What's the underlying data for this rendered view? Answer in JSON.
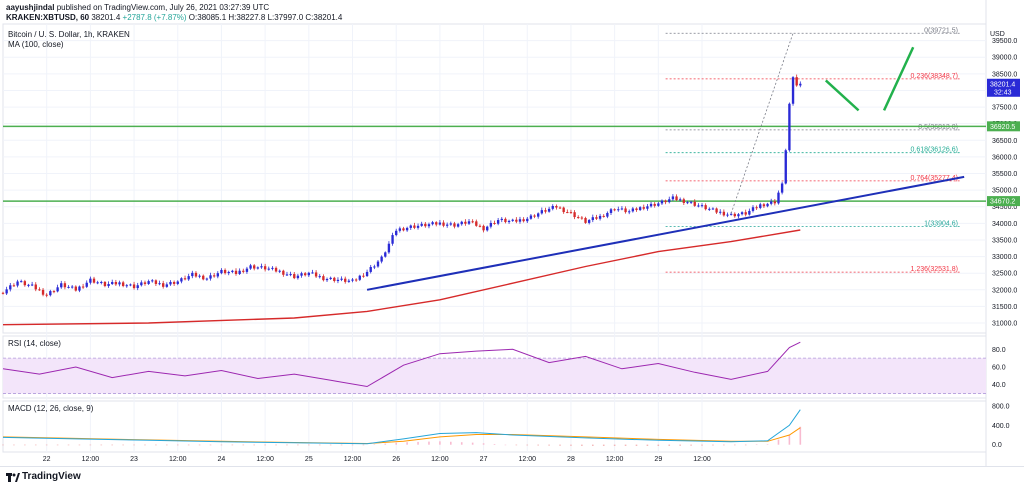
{
  "header": {
    "author": "aayushjindal",
    "published_text": "published on TradingView.com, July 26, 2021 03:27:39 UTC",
    "symbol_line": "KRAKEN:XBTUSD, 60",
    "quote": {
      "last": "38201.4",
      "change": "+2787.8 (+7.87%)",
      "open": "O:38085.1",
      "high": "H:38227.8",
      "low": "L:37997.0",
      "close": "C:38201.4"
    }
  },
  "legend": {
    "pair": "Bitcoin / U. S. Dollar, 1h, KRAKEN",
    "ma": "MA (100, close)",
    "rsi": "RSI (14, close)",
    "macd": "MACD (12, 26, close, 9)"
  },
  "footer": {
    "brand": "TradingView"
  },
  "colors": {
    "up": "#2a2ad6",
    "down": "#d62a2a",
    "ma": "#d62a2a",
    "trendline": "#1e2fb8",
    "support": "#4caf50",
    "arrow": "#22b14c",
    "rsi": "#9c27b0",
    "macd": "#26a6d9",
    "signal": "#ff9800"
  },
  "chart_data": [
    {
      "type": "candlestick",
      "title": "Bitcoin / U. S. Dollar, 1h, KRAKEN",
      "unit": "USD",
      "x_ticks": [
        "22",
        "12:00",
        "23",
        "12:00",
        "24",
        "12:00",
        "25",
        "12:00",
        "26",
        "12:00",
        "27",
        "12:00",
        "28",
        "12:00",
        "29",
        "12:00"
      ],
      "y_ticks": [
        31000,
        31500,
        32000,
        32500,
        33000,
        33500,
        34000,
        34500,
        35000,
        35500,
        36000,
        36500,
        37000,
        37500,
        38000,
        38500,
        39000,
        39500
      ],
      "ylim": [
        30700,
        40000
      ],
      "close_path": [
        [
          0,
          31950
        ],
        [
          4,
          32250
        ],
        [
          8,
          32100
        ],
        [
          12,
          31850
        ],
        [
          16,
          32150
        ],
        [
          20,
          32000
        ],
        [
          24,
          32300
        ],
        [
          28,
          32150
        ],
        [
          32,
          32200
        ],
        [
          36,
          32100
        ],
        [
          40,
          32250
        ],
        [
          44,
          32150
        ],
        [
          48,
          32250
        ],
        [
          52,
          32450
        ],
        [
          56,
          32350
        ],
        [
          60,
          32550
        ],
        [
          64,
          32500
        ],
        [
          68,
          32700
        ],
        [
          72,
          32650
        ],
        [
          76,
          32550
        ],
        [
          80,
          32400
        ],
        [
          84,
          32500
        ],
        [
          88,
          32350
        ],
        [
          92,
          32300
        ],
        [
          96,
          32250
        ],
        [
          100,
          32550
        ],
        [
          104,
          32950
        ],
        [
          108,
          33800
        ],
        [
          112,
          33900
        ],
        [
          116,
          33950
        ],
        [
          120,
          34000
        ],
        [
          124,
          33950
        ],
        [
          128,
          34050
        ],
        [
          132,
          33850
        ],
        [
          136,
          34100
        ],
        [
          140,
          34050
        ],
        [
          144,
          34150
        ],
        [
          148,
          34350
        ],
        [
          152,
          34500
        ],
        [
          156,
          34300
        ],
        [
          160,
          34050
        ],
        [
          164,
          34200
        ],
        [
          168,
          34450
        ],
        [
          172,
          34350
        ],
        [
          176,
          34500
        ],
        [
          180,
          34600
        ],
        [
          184,
          34750
        ],
        [
          188,
          34650
        ],
        [
          192,
          34500
        ],
        [
          196,
          34350
        ],
        [
          200,
          34250
        ],
        [
          204,
          34300
        ],
        [
          208,
          34550
        ],
        [
          212,
          34650
        ],
        [
          214,
          35200
        ],
        [
          215,
          36200
        ],
        [
          216,
          37600
        ],
        [
          217,
          38400
        ],
        [
          218,
          38150
        ],
        [
          219,
          38201.4
        ]
      ],
      "spike_high": 39721.5,
      "series": [
        {
          "name": "MA (100, close)",
          "values": [
            [
              0,
              30950
            ],
            [
              40,
              31000
            ],
            [
              80,
              31150
            ],
            [
              100,
              31350
            ],
            [
              120,
              31700
            ],
            [
              140,
              32200
            ],
            [
              160,
              32700
            ],
            [
              180,
              33150
            ],
            [
              200,
              33450
            ],
            [
              219,
              33800
            ]
          ]
        }
      ],
      "trendline": [
        [
          100,
          32000
        ],
        [
          264,
          35400
        ]
      ],
      "support_levels": [
        36920.5,
        34670.2
      ],
      "fib_levels": [
        {
          "ratio": "0",
          "value": "0(39721.5)",
          "price": 39721.5,
          "color": "#787b86"
        },
        {
          "ratio": "0.236",
          "value": "0.236(38348.7)",
          "price": 38348.7,
          "color": "#f23645"
        },
        {
          "ratio": "0.5",
          "value": "0.5(36813.0)",
          "price": 36813.0,
          "color": "#787b86"
        },
        {
          "ratio": "0.618",
          "value": "0.618(36126.6)",
          "price": 36126.6,
          "color": "#22ab94"
        },
        {
          "ratio": "0.764",
          "value": "0.764(35277.4)",
          "price": 35277.4,
          "color": "#f23645"
        },
        {
          "ratio": "1",
          "value": "1(33904.6)",
          "price": 33904.6,
          "color": "#26a69a"
        },
        {
          "ratio": "1.236",
          "value": "1.236(32531.8)",
          "price": 32531.8,
          "color": "#f23645"
        }
      ],
      "price_labels": [
        {
          "value": "38201.4",
          "sub": "32:43",
          "price": 38201.4,
          "color": "#2a2ad6"
        },
        {
          "value": "36920.5",
          "price": 36920.5,
          "color": "#4caf50"
        },
        {
          "value": "34670.2",
          "price": 34670.2,
          "color": "#4caf50"
        }
      ],
      "projection_arrow": [
        [
          226,
          38300
        ],
        [
          235,
          37400
        ],
        [
          242,
          37400
        ],
        [
          250,
          39300
        ]
      ]
    },
    {
      "type": "line",
      "title": "RSI (14, close)",
      "y_ticks": [
        40.0,
        60.0,
        80.0
      ],
      "ylim": [
        25,
        95
      ],
      "band": [
        30,
        70
      ],
      "series": [
        {
          "name": "RSI (14, close)",
          "values": [
            [
              0,
              58
            ],
            [
              10,
              52
            ],
            [
              20,
              60
            ],
            [
              30,
              48
            ],
            [
              40,
              55
            ],
            [
              50,
              50
            ],
            [
              60,
              56
            ],
            [
              70,
              47
            ],
            [
              80,
              52
            ],
            [
              90,
              45
            ],
            [
              100,
              38
            ],
            [
              110,
              62
            ],
            [
              120,
              75
            ],
            [
              130,
              78
            ],
            [
              140,
              80
            ],
            [
              150,
              65
            ],
            [
              160,
              72
            ],
            [
              170,
              58
            ],
            [
              180,
              64
            ],
            [
              190,
              54
            ],
            [
              200,
              46
            ],
            [
              210,
              55
            ],
            [
              216,
              82
            ],
            [
              219,
              88
            ]
          ]
        }
      ]
    },
    {
      "type": "line",
      "title": "MACD (12, 26, close, 9)",
      "y_ticks": [
        0.0,
        400.0,
        800.0
      ],
      "ylim": [
        -150,
        900
      ],
      "series": [
        {
          "name": "MACD",
          "values": [
            [
              0,
              150
            ],
            [
              20,
              120
            ],
            [
              40,
              90
            ],
            [
              60,
              60
            ],
            [
              80,
              40
            ],
            [
              100,
              20
            ],
            [
              110,
              120
            ],
            [
              120,
              230
            ],
            [
              130,
              250
            ],
            [
              140,
              200
            ],
            [
              160,
              140
            ],
            [
              180,
              90
            ],
            [
              200,
              60
            ],
            [
              210,
              80
            ],
            [
              216,
              400
            ],
            [
              219,
              720
            ]
          ]
        },
        {
          "name": "Signal",
          "values": [
            [
              0,
              160
            ],
            [
              20,
              130
            ],
            [
              40,
              100
            ],
            [
              60,
              70
            ],
            [
              80,
              45
            ],
            [
              100,
              25
            ],
            [
              110,
              70
            ],
            [
              120,
              160
            ],
            [
              130,
              210
            ],
            [
              140,
              210
            ],
            [
              160,
              160
            ],
            [
              180,
              110
            ],
            [
              200,
              70
            ],
            [
              210,
              70
            ],
            [
              216,
              200
            ],
            [
              219,
              350
            ]
          ]
        }
      ]
    }
  ]
}
